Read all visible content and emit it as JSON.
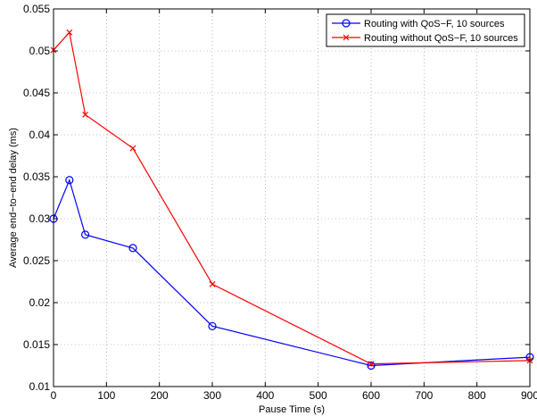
{
  "chart_data": {
    "type": "line",
    "title": "",
    "xlabel": "Pause Time (s)",
    "ylabel": "Average end−to−end delay (ms)",
    "xlim": [
      0,
      900
    ],
    "ylim": [
      0.01,
      0.055
    ],
    "xticks": [
      0,
      100,
      200,
      300,
      400,
      500,
      600,
      700,
      800,
      900
    ],
    "yticks": [
      0.01,
      0.015,
      0.02,
      0.025,
      0.03,
      0.035,
      0.04,
      0.045,
      0.05,
      0.055
    ],
    "xtick_labels": [
      "0",
      "100",
      "200",
      "300",
      "400",
      "500",
      "600",
      "700",
      "800",
      "900"
    ],
    "ytick_labels": [
      "0.01",
      "0.015",
      "0.02",
      "0.025",
      "0.03",
      "0.035",
      "0.04",
      "0.045",
      "0.05",
      "0.055"
    ],
    "grid": true,
    "legend_position": "top-right",
    "series": [
      {
        "name": "Routing with QoS−F, 10 sources",
        "color": "#0000ff",
        "marker": "circle",
        "x": [
          0,
          30,
          60,
          150,
          300,
          600,
          900
        ],
        "y": [
          0.03,
          0.0346,
          0.0281,
          0.0265,
          0.0172,
          0.0125,
          0.0135
        ]
      },
      {
        "name": "Routing without QoS−F, 10 sources",
        "color": "#ff0000",
        "marker": "x",
        "x": [
          0,
          30,
          60,
          150,
          300,
          600,
          900
        ],
        "y": [
          0.0501,
          0.0522,
          0.0424,
          0.0384,
          0.0222,
          0.0127,
          0.0131
        ]
      }
    ]
  }
}
